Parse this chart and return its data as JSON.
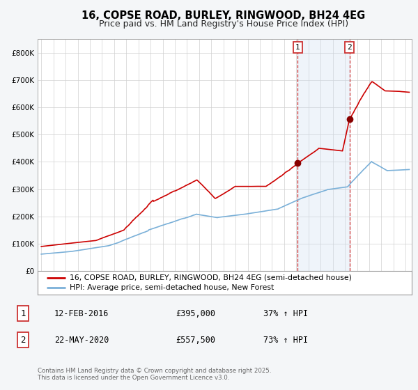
{
  "title": "16, COPSE ROAD, BURLEY, RINGWOOD, BH24 4EG",
  "subtitle": "Price paid vs. HM Land Registry's House Price Index (HPI)",
  "xlim": [
    1994.7,
    2025.5
  ],
  "ylim": [
    0,
    850000
  ],
  "yticks": [
    0,
    100000,
    200000,
    300000,
    400000,
    500000,
    600000,
    700000,
    800000
  ],
  "ytick_labels": [
    "£0",
    "£100K",
    "£200K",
    "£300K",
    "£400K",
    "£500K",
    "£600K",
    "£700K",
    "£800K"
  ],
  "bg_color": "#f4f6f8",
  "plot_bg": "#ffffff",
  "red_line_color": "#cc0000",
  "blue_line_color": "#7ab0d8",
  "shade_color": "#ccddf0",
  "vline_color": "#cc3333",
  "marker_color": "#880000",
  "sale1_x": 2016.12,
  "sale1_y": 395000,
  "sale2_x": 2020.38,
  "sale2_y": 557500,
  "legend1": "16, COPSE ROAD, BURLEY, RINGWOOD, BH24 4EG (semi-detached house)",
  "legend2": "HPI: Average price, semi-detached house, New Forest",
  "table_rows": [
    {
      "num": "1",
      "date": "12-FEB-2016",
      "price": "£395,000",
      "change": "37% ↑ HPI"
    },
    {
      "num": "2",
      "date": "22-MAY-2020",
      "price": "£557,500",
      "change": "73% ↑ HPI"
    }
  ],
  "footer": "Contains HM Land Registry data © Crown copyright and database right 2025.\nThis data is licensed under the Open Government Licence v3.0.",
  "title_fontsize": 10.5,
  "subtitle_fontsize": 9,
  "axis_fontsize": 7.5,
  "legend_fontsize": 8
}
